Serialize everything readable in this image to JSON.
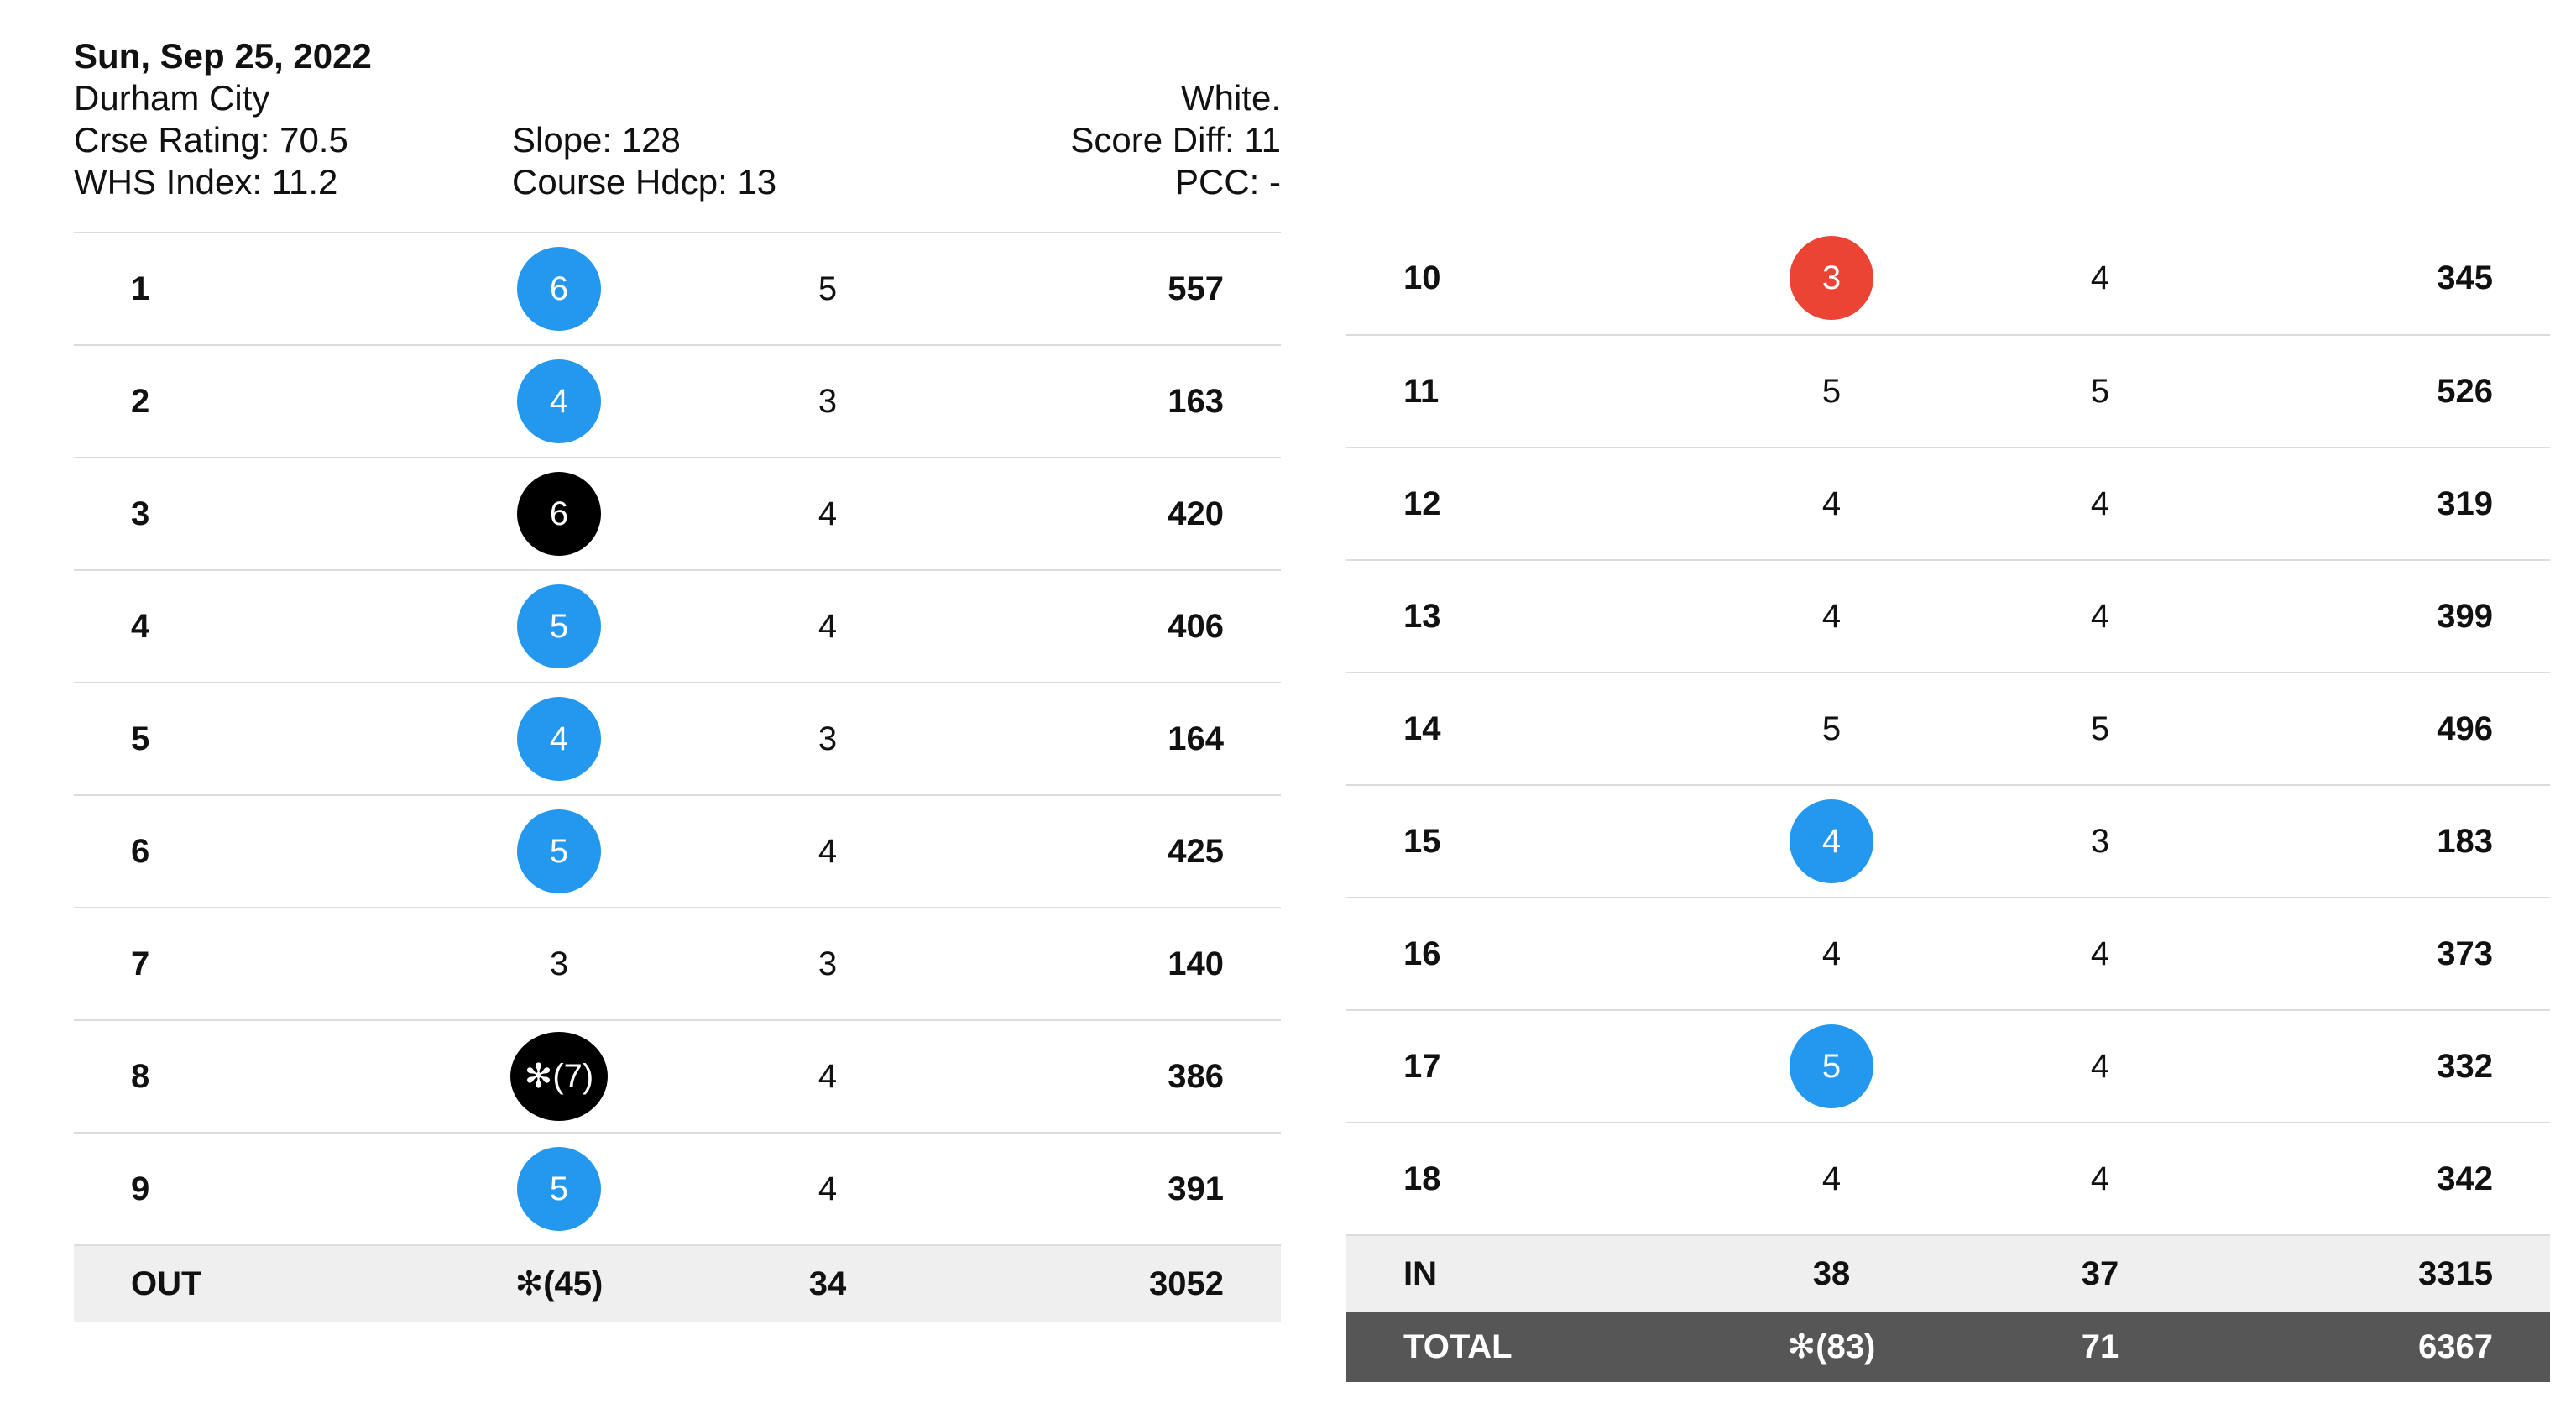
{
  "header": {
    "date": "Sun, Sep 25, 2022",
    "course": "Durham City",
    "tee": "White.",
    "rating": "Crse Rating: 70.5",
    "slope": "Slope: 128",
    "score_diff": "Score Diff: 11",
    "whs": "WHS Index: 11.2",
    "course_hdcp": "Course Hdcp: 13",
    "pcc": "PCC: -"
  },
  "colors": {
    "birdie": "#ec4434",
    "bogey": "#2398ee",
    "double_bogey_plus": "#000000",
    "total_bar": "#565656",
    "subtotal_bar": "#efefef"
  },
  "front": [
    {
      "hole": "1",
      "score": "6",
      "par": "5",
      "yards": "557",
      "badge": "blue"
    },
    {
      "hole": "2",
      "score": "4",
      "par": "3",
      "yards": "163",
      "badge": "blue"
    },
    {
      "hole": "3",
      "score": "6",
      "par": "4",
      "yards": "420",
      "badge": "black"
    },
    {
      "hole": "4",
      "score": "5",
      "par": "4",
      "yards": "406",
      "badge": "blue"
    },
    {
      "hole": "5",
      "score": "4",
      "par": "3",
      "yards": "164",
      "badge": "blue"
    },
    {
      "hole": "6",
      "score": "5",
      "par": "4",
      "yards": "425",
      "badge": "blue"
    },
    {
      "hole": "7",
      "score": "3",
      "par": "3",
      "yards": "140",
      "badge": "none"
    },
    {
      "hole": "8",
      "score": "✻(7)",
      "par": "4",
      "yards": "386",
      "badge": "black"
    },
    {
      "hole": "9",
      "score": "5",
      "par": "4",
      "yards": "391",
      "badge": "blue"
    }
  ],
  "back": [
    {
      "hole": "10",
      "score": "3",
      "par": "4",
      "yards": "345",
      "badge": "red"
    },
    {
      "hole": "11",
      "score": "5",
      "par": "5",
      "yards": "526",
      "badge": "none"
    },
    {
      "hole": "12",
      "score": "4",
      "par": "4",
      "yards": "319",
      "badge": "none"
    },
    {
      "hole": "13",
      "score": "4",
      "par": "4",
      "yards": "399",
      "badge": "none"
    },
    {
      "hole": "14",
      "score": "5",
      "par": "5",
      "yards": "496",
      "badge": "none"
    },
    {
      "hole": "15",
      "score": "4",
      "par": "3",
      "yards": "183",
      "badge": "blue"
    },
    {
      "hole": "16",
      "score": "4",
      "par": "4",
      "yards": "373",
      "badge": "none"
    },
    {
      "hole": "17",
      "score": "5",
      "par": "4",
      "yards": "332",
      "badge": "blue"
    },
    {
      "hole": "18",
      "score": "4",
      "par": "4",
      "yards": "342",
      "badge": "none"
    }
  ],
  "out": {
    "label": "OUT",
    "score": "✻(45)",
    "par": "34",
    "yards": "3052"
  },
  "in": {
    "label": "IN",
    "score": "38",
    "par": "37",
    "yards": "3315"
  },
  "total": {
    "label": "TOTAL",
    "score": "✻(83)",
    "par": "71",
    "yards": "6367"
  }
}
